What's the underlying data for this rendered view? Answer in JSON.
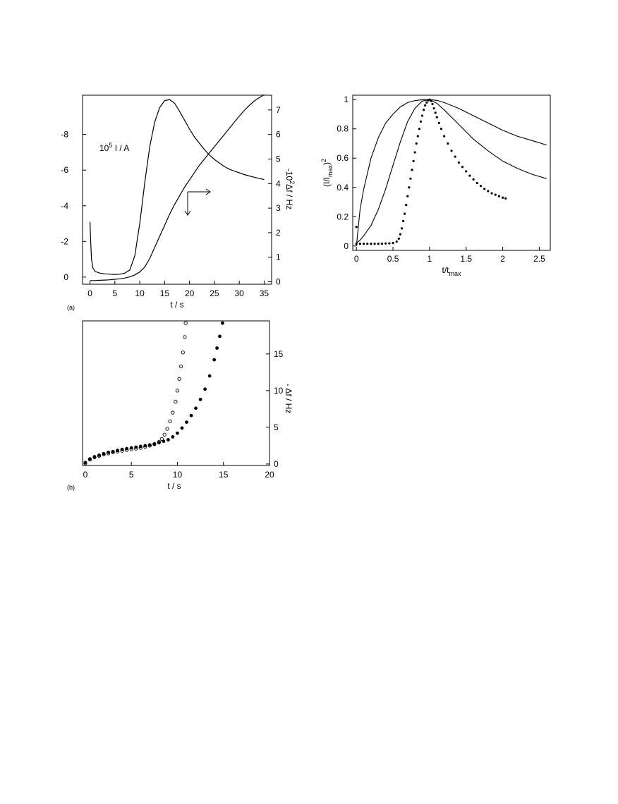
{
  "chart_data": [
    {
      "type": "line",
      "panel_label": "(a)",
      "xlabel": "t / s",
      "ylabel_right": "-10² Δf / Hz",
      "annotation": "10⁵ I / A",
      "annotation_parts": {
        "base": "10",
        "exp": "5",
        "rest": " I / A"
      },
      "ylabel_right_parts": {
        "pre": "-10",
        "exp": "2",
        "post": "Δf / Hz"
      },
      "xlim": [
        -1.5,
        36.5
      ],
      "xticks": [
        0,
        5,
        10,
        15,
        20,
        25,
        30,
        35
      ],
      "ylim_left": [
        0.4,
        -10.2
      ],
      "yticks_left": [
        0,
        -2,
        -4,
        -6,
        -8
      ],
      "ylim_right": [
        -0.1,
        7.6
      ],
      "yticks_right": [
        0,
        1,
        2,
        3,
        4,
        5,
        6,
        7
      ],
      "series": [
        {
          "axis": "left",
          "x": [
            0,
            0.1,
            0.3,
            0.6,
            1,
            2,
            3,
            4,
            5,
            6,
            7,
            8,
            9,
            10,
            11,
            12,
            13,
            14,
            15,
            16,
            17,
            18,
            19,
            20,
            21,
            22,
            23,
            24,
            25,
            26,
            27,
            28,
            29,
            30,
            31,
            32,
            33,
            34,
            35
          ],
          "y": [
            -3.1,
            -2.2,
            -1.0,
            -0.5,
            -0.32,
            -0.22,
            -0.18,
            -0.16,
            -0.15,
            -0.16,
            -0.22,
            -0.4,
            -1.2,
            -3.0,
            -5.3,
            -7.3,
            -8.7,
            -9.5,
            -9.9,
            -9.95,
            -9.75,
            -9.3,
            -8.8,
            -8.3,
            -7.85,
            -7.5,
            -7.15,
            -6.85,
            -6.6,
            -6.4,
            -6.2,
            -6.05,
            -5.95,
            -5.85,
            -5.75,
            -5.67,
            -5.6,
            -5.53,
            -5.47
          ]
        },
        {
          "axis": "right",
          "x": [
            0,
            1,
            2,
            3,
            4,
            5,
            6,
            7,
            8,
            9,
            10,
            11,
            12,
            13,
            14,
            15,
            16,
            17,
            18,
            19,
            20,
            21,
            22,
            23,
            24,
            25,
            26,
            27,
            28,
            29,
            30,
            31,
            32,
            33,
            34,
            35
          ],
          "y": [
            0.05,
            0.05,
            0.06,
            0.07,
            0.08,
            0.1,
            0.12,
            0.15,
            0.2,
            0.28,
            0.4,
            0.6,
            0.95,
            1.4,
            1.85,
            2.3,
            2.75,
            3.15,
            3.5,
            3.85,
            4.15,
            4.45,
            4.75,
            5.0,
            5.25,
            5.5,
            5.75,
            6.0,
            6.25,
            6.5,
            6.75,
            6.98,
            7.18,
            7.36,
            7.5,
            7.62
          ]
        }
      ]
    },
    {
      "type": "scatter",
      "panel_label": "(b)",
      "xlabel": "t / s",
      "ylabel_right": "- Δf / Hz",
      "xlim": [
        -0.3,
        20
      ],
      "xticks": [
        0,
        5,
        10,
        15,
        20
      ],
      "ylim": [
        -0.2,
        19.5
      ],
      "yticks_right": [
        0,
        5,
        10,
        15
      ],
      "series": [
        {
          "marker": "open",
          "x": [
            0,
            0.5,
            1,
            1.5,
            2,
            2.5,
            3,
            3.5,
            4,
            4.5,
            5,
            5.5,
            6,
            6.5,
            7,
            7.5,
            8,
            8.3,
            8.6,
            8.9,
            9.2,
            9.5,
            9.8,
            10.0,
            10.2,
            10.4,
            10.6,
            10.8,
            10.9
          ],
          "y": [
            0.1,
            0.6,
            0.9,
            1.1,
            1.3,
            1.45,
            1.6,
            1.7,
            1.8,
            1.9,
            2.0,
            2.1,
            2.2,
            2.35,
            2.5,
            2.7,
            3.0,
            3.4,
            4.0,
            4.8,
            5.8,
            7.0,
            8.5,
            10.0,
            11.6,
            13.3,
            15.2,
            17.3,
            19.2
          ]
        },
        {
          "marker": "filled",
          "x": [
            0,
            0.5,
            1,
            1.5,
            2,
            2.5,
            3,
            3.5,
            4,
            4.5,
            5,
            5.5,
            6,
            6.5,
            7,
            7.5,
            8,
            8.5,
            9,
            9.5,
            10,
            10.5,
            11,
            11.5,
            12,
            12.5,
            13,
            13.5,
            14,
            14.3,
            14.6,
            14.9
          ],
          "y": [
            0.2,
            0.7,
            1.0,
            1.2,
            1.4,
            1.6,
            1.7,
            1.85,
            2.0,
            2.1,
            2.2,
            2.3,
            2.4,
            2.5,
            2.6,
            2.75,
            2.9,
            3.1,
            3.3,
            3.7,
            4.2,
            4.9,
            5.7,
            6.6,
            7.6,
            8.8,
            10.2,
            12.0,
            14.2,
            15.8,
            17.4,
            19.2
          ]
        }
      ]
    },
    {
      "type": "line",
      "xlabel": "t/t",
      "xlabel_sub": "max",
      "ylabel_parts": {
        "open": "(I/I",
        "sub": "max",
        "close": ")",
        "exp": "2"
      },
      "xlim": [
        -0.05,
        2.65
      ],
      "xticks": [
        0,
        0.5,
        1,
        1.5,
        2,
        2.5
      ],
      "ylim": [
        -0.03,
        1.03
      ],
      "yticks": [
        0,
        0.2,
        0.4,
        0.6,
        0.8,
        1
      ],
      "series": [
        {
          "style": "solid",
          "x": [
            0,
            0.05,
            0.1,
            0.2,
            0.3,
            0.4,
            0.5,
            0.6,
            0.7,
            0.8,
            0.9,
            1.0,
            1.1,
            1.2,
            1.4,
            1.6,
            1.8,
            2.0,
            2.2,
            2.4,
            2.6
          ],
          "y": [
            0.0,
            0.25,
            0.39,
            0.6,
            0.74,
            0.84,
            0.9,
            0.95,
            0.98,
            0.993,
            0.999,
            1.0,
            0.995,
            0.98,
            0.94,
            0.89,
            0.84,
            0.79,
            0.75,
            0.72,
            0.69
          ]
        },
        {
          "style": "solid",
          "x": [
            0,
            0.05,
            0.1,
            0.2,
            0.3,
            0.4,
            0.5,
            0.6,
            0.7,
            0.8,
            0.9,
            1.0,
            1.1,
            1.2,
            1.4,
            1.6,
            1.8,
            2.0,
            2.2,
            2.4,
            2.6
          ],
          "y": [
            0.02,
            0.04,
            0.07,
            0.14,
            0.25,
            0.39,
            0.55,
            0.71,
            0.85,
            0.94,
            0.99,
            1.0,
            0.975,
            0.93,
            0.83,
            0.73,
            0.65,
            0.58,
            0.53,
            0.49,
            0.46
          ]
        },
        {
          "style": "dots",
          "x": [
            0,
            0.05,
            0.1,
            0.15,
            0.2,
            0.25,
            0.3,
            0.35,
            0.4,
            0.45,
            0.5,
            0.55,
            0.58,
            0.6,
            0.62,
            0.64,
            0.66,
            0.68,
            0.7,
            0.72,
            0.74,
            0.76,
            0.78,
            0.8,
            0.82,
            0.84,
            0.86,
            0.88,
            0.9,
            0.92,
            0.94,
            0.96,
            0.98,
            1.0,
            1.02,
            1.04,
            1.06,
            1.08,
            1.1,
            1.13,
            1.16,
            1.2,
            1.25,
            1.3,
            1.35,
            1.4,
            1.45,
            1.5,
            1.55,
            1.6,
            1.65,
            1.7,
            1.75,
            1.8,
            1.85,
            1.9,
            1.95,
            2.0,
            2.04
          ],
          "y": [
            0.015,
            0.015,
            0.015,
            0.015,
            0.015,
            0.015,
            0.015,
            0.016,
            0.017,
            0.018,
            0.02,
            0.03,
            0.05,
            0.08,
            0.12,
            0.17,
            0.22,
            0.28,
            0.34,
            0.4,
            0.46,
            0.52,
            0.58,
            0.64,
            0.7,
            0.75,
            0.8,
            0.85,
            0.89,
            0.93,
            0.96,
            0.98,
            0.995,
            1.0,
            0.99,
            0.97,
            0.94,
            0.91,
            0.88,
            0.84,
            0.8,
            0.75,
            0.7,
            0.65,
            0.61,
            0.57,
            0.54,
            0.51,
            0.48,
            0.455,
            0.43,
            0.41,
            0.39,
            0.375,
            0.36,
            0.35,
            0.34,
            0.33,
            0.325
          ]
        }
      ],
      "extra_point": {
        "x": 0,
        "y": 0.13
      }
    }
  ]
}
